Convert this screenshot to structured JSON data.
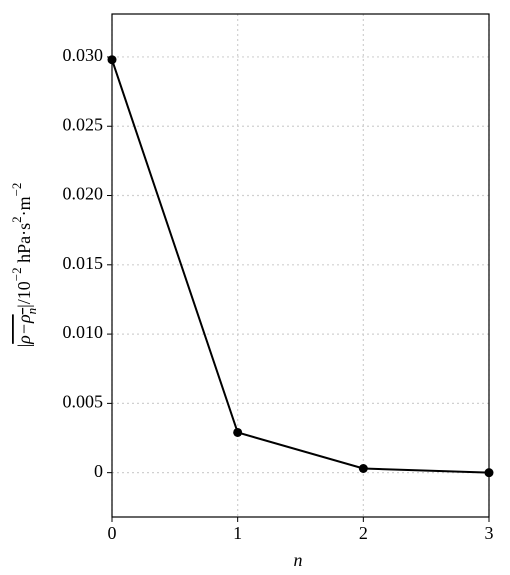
{
  "chart_data": {
    "type": "line",
    "x_label": "n",
    "y_label": [
      "|",
      "ρ−ρ",
      "n",
      "|/10",
      "−2",
      " hPa·s",
      "2",
      "·m",
      "−2"
    ],
    "x": [
      0,
      1,
      2,
      3
    ],
    "series": [
      {
        "color": "#000000",
        "values": [
          0.0298,
          0.0029,
          0.0003,
          0.0
        ]
      }
    ],
    "xlim": [
      0,
      3
    ],
    "xticks": [
      0,
      1,
      2,
      3
    ],
    "ylim": [
      -0.0032,
      0.0331
    ],
    "yticks": [
      0,
      0.005,
      {
        "value": 0.01,
        "label": "0.010"
      },
      0.015,
      {
        "value": 0.02,
        "label": "0.020"
      },
      0.025,
      {
        "value": 0.03,
        "label": "0.030"
      }
    ],
    "grid": true
  }
}
